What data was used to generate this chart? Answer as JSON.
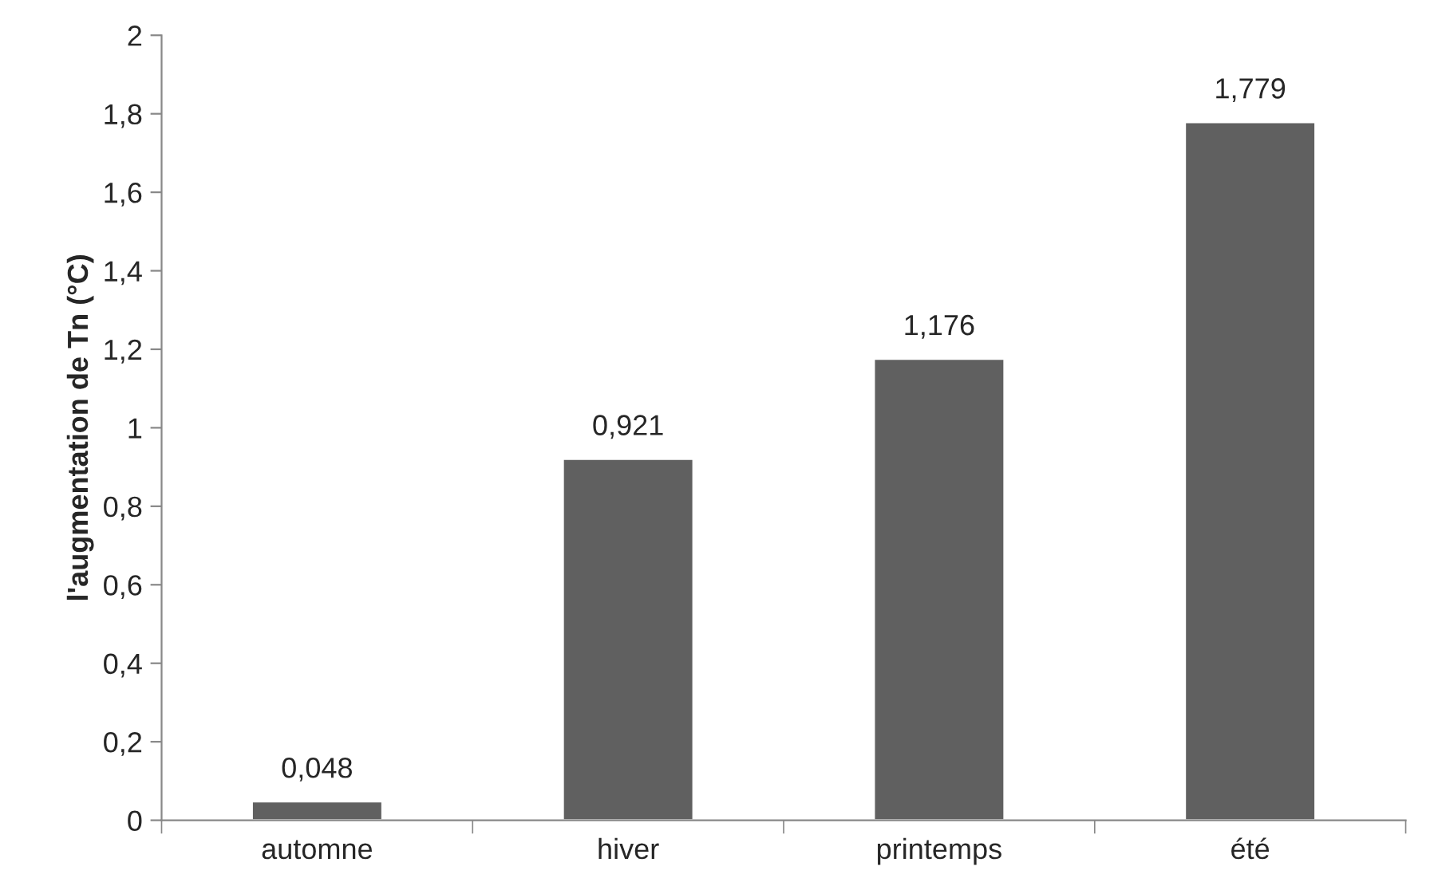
{
  "chart_data": {
    "type": "bar",
    "ylabel": "l'augmentation de Tn (°C)",
    "categories": [
      "automne",
      "hiver",
      "printemps",
      "été"
    ],
    "values": [
      0.048,
      0.921,
      1.176,
      1.779
    ],
    "value_labels": [
      "0,048",
      "0,921",
      "1,176",
      "1,779"
    ],
    "color": "#606060",
    "ylim": [
      0,
      2
    ],
    "yticks": [
      0,
      {
        "value": 0.2,
        "label": "0,2"
      },
      {
        "value": 0.4,
        "label": "0,4"
      },
      {
        "value": 0.6,
        "label": "0,6"
      },
      {
        "value": 0.8,
        "label": "0,8"
      },
      1,
      {
        "value": 1.2,
        "label": "1,2"
      },
      {
        "value": 1.4,
        "label": "1,4"
      },
      {
        "value": 1.6,
        "label": "1,6"
      },
      {
        "value": 1.8,
        "label": "1,8"
      },
      2
    ],
    "grid": false
  }
}
